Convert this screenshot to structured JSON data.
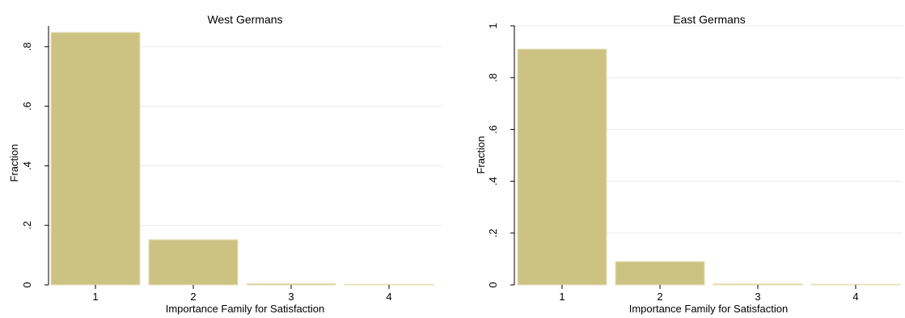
{
  "chart_data": [
    {
      "type": "bar",
      "title": "West Germans",
      "xlabel": "Importance Family for Satisfaction",
      "ylabel": "Fraction",
      "categories": [
        "1",
        "2",
        "3",
        "4"
      ],
      "values": [
        0.848,
        0.152,
        0.004,
        0.002
      ],
      "ylim": [
        0,
        0.87
      ],
      "yticks": [
        0,
        0.2,
        0.4,
        0.6,
        0.8
      ],
      "ytick_labels": [
        "0",
        ".2",
        ".4",
        ".6",
        ".8"
      ],
      "grid": true,
      "bar_color": "#ccc383"
    },
    {
      "type": "bar",
      "title": "East Germans",
      "xlabel": "Importance Family for Satisfaction",
      "ylabel": "Fraction",
      "categories": [
        "1",
        "2",
        "3",
        "4"
      ],
      "values": [
        0.91,
        0.09,
        0.004,
        0.002
      ],
      "ylim": [
        0,
        1.0
      ],
      "yticks": [
        0,
        0.2,
        0.4,
        0.6,
        0.8,
        1.0
      ],
      "ytick_labels": [
        "0",
        ".2",
        ".4",
        ".6",
        ".8",
        "1"
      ],
      "grid": true,
      "bar_color": "#ccc383"
    }
  ]
}
